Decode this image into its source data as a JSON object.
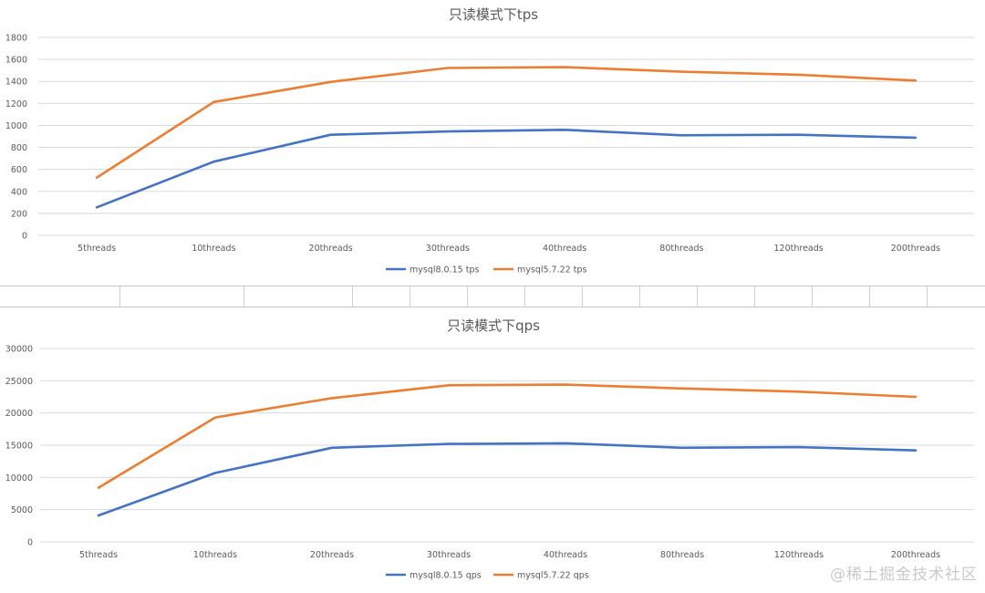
{
  "watermark": "@稀土掘金技术社区",
  "colors": {
    "series1": "#4472c4",
    "series2": "#ed7d31",
    "grid": "#d9d9d9",
    "text": "#595959"
  },
  "chart_data": [
    {
      "type": "line",
      "title": "只读模式下tps",
      "categories": [
        "5threads",
        "10threads",
        "20threads",
        "30threads",
        "40threads",
        "80threads",
        "120threads",
        "200threads"
      ],
      "ylim": [
        0,
        1800
      ],
      "yticks": [
        0,
        200,
        400,
        600,
        800,
        1000,
        1200,
        1400,
        1600,
        1800
      ],
      "grid": true,
      "legend": "bottom",
      "series": [
        {
          "name": "mysql8.0.15 tps",
          "values": [
            255,
            670,
            915,
            945,
            960,
            910,
            915,
            888
          ]
        },
        {
          "name": "mysql5.7.22 tps",
          "values": [
            525,
            1213,
            1395,
            1522,
            1530,
            1488,
            1461,
            1408
          ]
        }
      ]
    },
    {
      "type": "line",
      "title": "只读模式下qps",
      "categories": [
        "5threads",
        "10threads",
        "20threads",
        "30threads",
        "40threads",
        "80threads",
        "120threads",
        "200threads"
      ],
      "ylim": [
        0,
        30000
      ],
      "yticks": [
        0,
        5000,
        10000,
        15000,
        20000,
        25000,
        30000
      ],
      "grid": true,
      "legend": "bottom",
      "series": [
        {
          "name": "mysql8.0.15 qps",
          "values": [
            4100,
            10700,
            14600,
            15200,
            15300,
            14600,
            14700,
            14200
          ]
        },
        {
          "name": "mysql5.7.22 qps",
          "values": [
            8400,
            19300,
            22300,
            24300,
            24400,
            23800,
            23300,
            22500
          ]
        }
      ]
    }
  ]
}
